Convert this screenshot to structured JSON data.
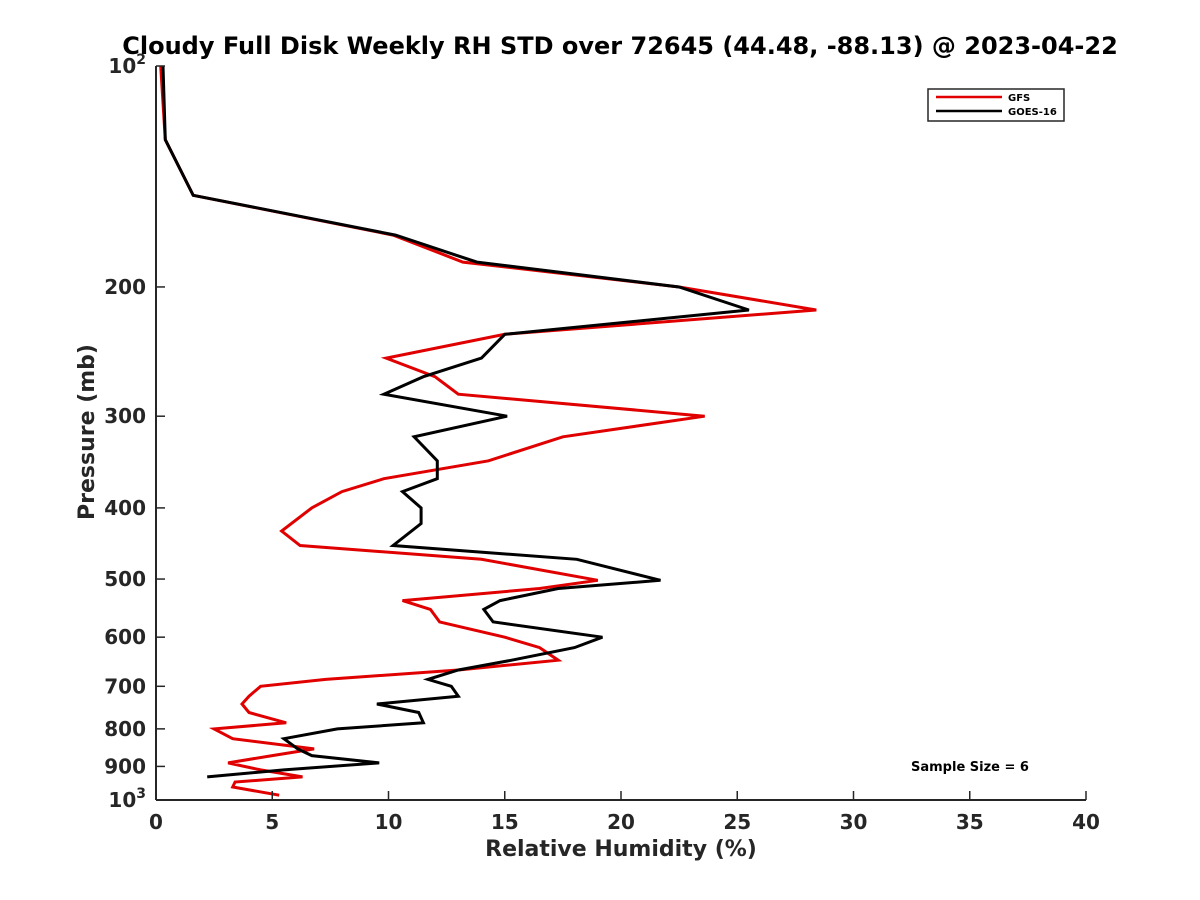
{
  "chart_data": {
    "type": "line",
    "title": "Cloudy Full Disk Weekly RH STD over 72645 (44.48, -88.13) @ 2023-04-22",
    "xlabel": "Relative Humidity (%)",
    "ylabel": "Pressure (mb)",
    "xlim": [
      0,
      40
    ],
    "ylim": [
      100,
      1000
    ],
    "y_scale": "log",
    "y_reversed": true,
    "grid": false,
    "legend_position": "top-right",
    "x_ticks": [
      "0",
      "5",
      "10",
      "15",
      "20",
      "25",
      "30",
      "35",
      "40"
    ],
    "y_ticks": [
      {
        "value": 100,
        "base": "10",
        "exp": "2"
      },
      {
        "value": 200,
        "label": "200"
      },
      {
        "value": 300,
        "label": "300"
      },
      {
        "value": 400,
        "label": "400"
      },
      {
        "value": 500,
        "label": "500"
      },
      {
        "value": 600,
        "label": "600"
      },
      {
        "value": 700,
        "label": "700"
      },
      {
        "value": 800,
        "label": "800"
      },
      {
        "value": 900,
        "label": "900"
      },
      {
        "value": 1000,
        "base": "10",
        "exp": "3"
      }
    ],
    "series": [
      {
        "name": "GFS",
        "color": "#e00000",
        "points": [
          [
            0.2,
            100
          ],
          [
            0.4,
            126
          ],
          [
            1.6,
            150
          ],
          [
            10.2,
            170
          ],
          [
            13.2,
            185
          ],
          [
            22.5,
            200
          ],
          [
            28.4,
            215
          ],
          [
            15.0,
            232
          ],
          [
            9.9,
            250
          ],
          [
            12.0,
            265
          ],
          [
            13.0,
            280
          ],
          [
            23.6,
            300
          ],
          [
            17.5,
            320
          ],
          [
            14.3,
            345
          ],
          [
            9.8,
            365
          ],
          [
            8.0,
            380
          ],
          [
            6.7,
            400
          ],
          [
            5.4,
            430
          ],
          [
            6.2,
            450
          ],
          [
            14.0,
            470
          ],
          [
            19.0,
            502
          ],
          [
            16.5,
            515
          ],
          [
            10.6,
            535
          ],
          [
            11.8,
            550
          ],
          [
            12.2,
            572
          ],
          [
            15.0,
            600
          ],
          [
            16.5,
            620
          ],
          [
            17.3,
            645
          ],
          [
            13.0,
            665
          ],
          [
            7.3,
            685
          ],
          [
            4.5,
            700
          ],
          [
            4.0,
            722
          ],
          [
            3.7,
            740
          ],
          [
            4.0,
            760
          ],
          [
            5.6,
            785
          ],
          [
            2.5,
            800
          ],
          [
            3.3,
            825
          ],
          [
            6.8,
            852
          ],
          [
            5.0,
            870
          ],
          [
            3.1,
            890
          ],
          [
            4.5,
            910
          ],
          [
            6.3,
            930
          ],
          [
            3.4,
            945
          ],
          [
            3.3,
            960
          ],
          [
            5.3,
            985
          ]
        ]
      },
      {
        "name": "GOES-16",
        "color": "#000000",
        "points": [
          [
            0.3,
            100
          ],
          [
            0.4,
            126
          ],
          [
            1.6,
            150
          ],
          [
            10.3,
            170
          ],
          [
            13.8,
            185
          ],
          [
            22.5,
            200
          ],
          [
            25.5,
            215
          ],
          [
            15.0,
            232
          ],
          [
            14.0,
            250
          ],
          [
            11.5,
            265
          ],
          [
            9.8,
            280
          ],
          [
            15.1,
            300
          ],
          [
            11.1,
            320
          ],
          [
            12.1,
            345
          ],
          [
            12.1,
            365
          ],
          [
            10.6,
            380
          ],
          [
            11.4,
            400
          ],
          [
            11.4,
            420
          ],
          [
            10.2,
            450
          ],
          [
            18.1,
            470
          ],
          [
            21.7,
            502
          ],
          [
            17.3,
            515
          ],
          [
            14.8,
            535
          ],
          [
            14.1,
            550
          ],
          [
            14.5,
            572
          ],
          [
            19.2,
            600
          ],
          [
            18.0,
            620
          ],
          [
            15.3,
            645
          ],
          [
            13.0,
            665
          ],
          [
            11.7,
            685
          ],
          [
            12.7,
            700
          ],
          [
            13.0,
            722
          ],
          [
            9.5,
            740
          ],
          [
            11.3,
            760
          ],
          [
            11.5,
            785
          ],
          [
            7.8,
            800
          ],
          [
            5.5,
            825
          ],
          [
            6.1,
            852
          ],
          [
            6.7,
            870
          ],
          [
            9.6,
            890
          ],
          [
            5.5,
            910
          ],
          [
            2.2,
            930
          ]
        ]
      }
    ],
    "annotations": [
      "Sample Size = 6"
    ]
  }
}
